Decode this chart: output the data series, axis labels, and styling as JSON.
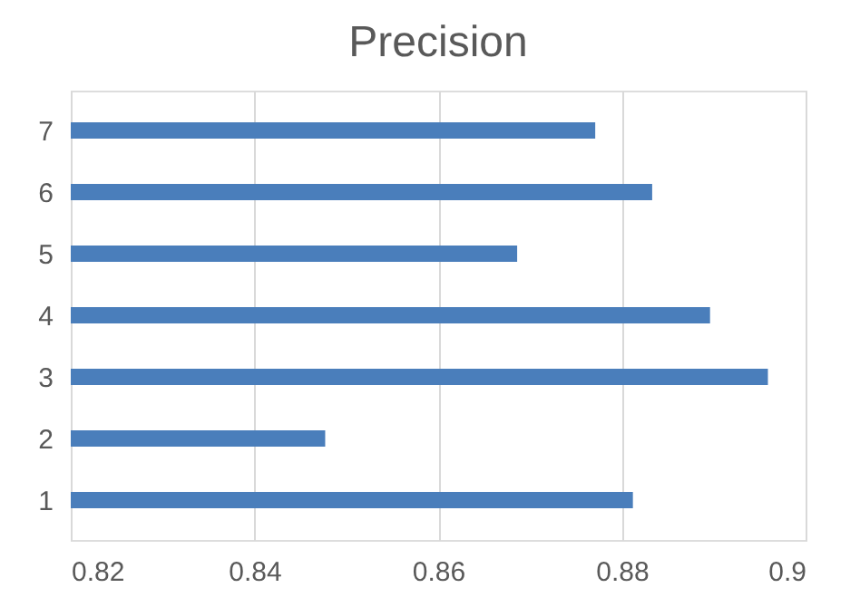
{
  "chart_data": {
    "type": "bar",
    "orientation": "horizontal",
    "title": "Precision",
    "categories": [
      "7",
      "6",
      "5",
      "4",
      "3",
      "2",
      "1"
    ],
    "values": [
      0.8771,
      0.8833,
      0.8686,
      0.8896,
      0.8959,
      0.8477,
      0.8812
    ],
    "color": "#4a7ebb",
    "xlim": [
      0.82,
      0.9
    ],
    "xticks": [
      0.82,
      0.84,
      0.86,
      0.88,
      0.9
    ],
    "grid": "x"
  }
}
